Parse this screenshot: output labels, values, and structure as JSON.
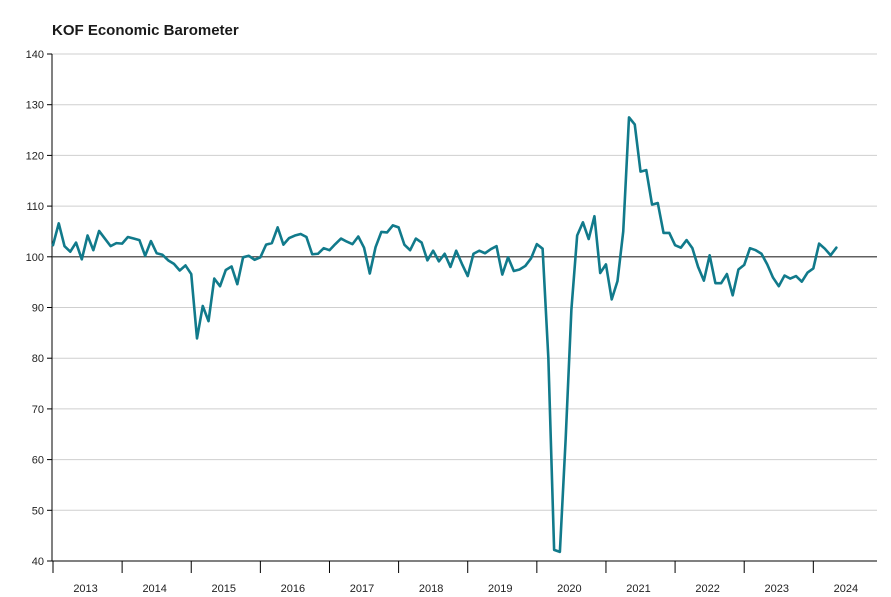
{
  "chart_data": {
    "type": "line",
    "title": "KOF Economic Barometer",
    "xlabel": "",
    "ylabel": "",
    "ylim": [
      40,
      140
    ],
    "yticks": [
      40,
      50,
      60,
      70,
      80,
      90,
      100,
      110,
      120,
      130,
      140
    ],
    "xticks": [
      "2013",
      "2014",
      "2015",
      "2016",
      "2017",
      "2018",
      "2019",
      "2020",
      "2021",
      "2022",
      "2023",
      "2024"
    ],
    "reference_line": 100,
    "grid": "horizontal",
    "line_color": "#117a8b",
    "x_start": "2013-01",
    "series": [
      {
        "values": [
          102.3,
          106.6,
          102.1,
          101.0,
          102.8,
          99.5,
          104.2,
          101.3,
          105.1,
          103.6,
          102.1,
          102.7,
          102.6,
          103.9,
          103.6,
          103.3,
          100.2,
          103.1,
          100.7,
          100.4,
          99.3,
          98.6,
          97.3,
          98.3,
          96.6,
          83.9,
          90.3,
          87.3,
          95.7,
          94.2,
          97.4,
          98.1,
          94.6,
          99.9,
          100.2,
          99.4,
          99.9,
          102.4,
          102.7,
          105.8,
          102.4,
          103.7,
          104.2,
          104.5,
          103.9,
          100.5,
          100.6,
          101.7,
          101.3,
          102.5,
          103.6,
          103.0,
          102.5,
          104.0,
          101.8,
          96.7,
          101.9,
          104.9,
          104.8,
          106.2,
          105.8,
          102.4,
          101.3,
          103.6,
          102.8,
          99.3,
          101.2,
          99.1,
          100.6,
          98.0,
          101.2,
          98.6,
          96.2,
          100.6,
          101.2,
          100.7,
          101.5,
          102.1,
          96.5,
          99.9,
          97.2,
          97.5,
          98.2,
          99.7,
          102.5,
          101.6,
          80.0,
          42.2,
          41.8,
          64.0,
          89.6,
          104.2,
          106.8,
          103.5,
          108.0,
          96.8,
          98.5,
          91.6,
          95.2,
          105.0,
          127.5,
          126.1,
          116.8,
          117.1,
          110.3,
          110.6,
          104.7,
          104.7,
          102.3,
          101.8,
          103.3,
          101.7,
          98.0,
          95.3,
          100.3,
          94.8,
          94.8,
          96.6,
          92.4,
          97.5,
          98.4,
          101.7,
          101.3,
          100.6,
          98.5,
          95.9,
          94.2,
          96.3,
          95.7,
          96.2,
          95.1,
          96.9,
          97.7,
          102.6,
          101.6,
          100.3,
          101.8
        ]
      }
    ]
  }
}
